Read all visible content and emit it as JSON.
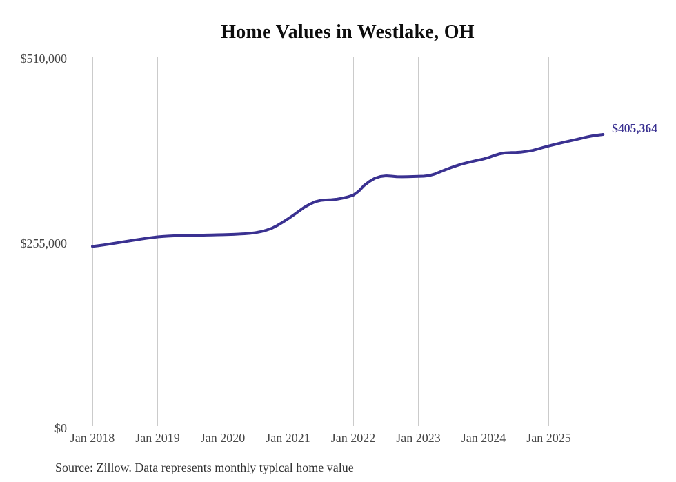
{
  "title": "Home Values in Westlake, OH",
  "source_note": "Source: Zillow. Data represents monthly typical home value",
  "colors": {
    "line": "#3a3191",
    "end_label": "#3a3191",
    "gridline": "#cbcbcb",
    "axis_text": "#474747",
    "title_text": "#0d0d0d",
    "source_text": "#333333",
    "background": "#ffffff"
  },
  "chart_data": {
    "type": "line",
    "title": "Home Values in Westlake, OH",
    "xlabel": "",
    "ylabel": "",
    "grid": "vertical-only",
    "legend": "none",
    "ylim": [
      0,
      510000
    ],
    "y_ticks": [
      {
        "label": "$510,000",
        "value": 510000
      },
      {
        "label": "$255,000",
        "value": 255000
      },
      {
        "label": "$0",
        "value": 0
      }
    ],
    "x_tick_labels": [
      "Jan 2018",
      "Jan 2019",
      "Jan 2020",
      "Jan 2021",
      "Jan 2022",
      "Jan 2023",
      "Jan 2024",
      "Jan 2025"
    ],
    "series": [
      {
        "name": "Monthly typical home value",
        "frequency": "monthly",
        "start": "Jan 2018",
        "end": "Nov 2025",
        "final_value": 405364,
        "final_label": "$405,364",
        "values": [
          250900,
          251800,
          252800,
          253900,
          255100,
          256300,
          257500,
          258700,
          259900,
          261000,
          262100,
          263100,
          264000,
          264600,
          265100,
          265500,
          265800,
          265900,
          266000,
          266100,
          266300,
          266500,
          266700,
          266900,
          267000,
          267200,
          267500,
          267900,
          268300,
          268900,
          269800,
          271200,
          273200,
          275800,
          279600,
          284100,
          288900,
          294000,
          299500,
          304800,
          309000,
          312500,
          314300,
          315000,
          315300,
          316000,
          317400,
          319200,
          321500,
          327000,
          334800,
          340500,
          344900,
          347300,
          348200,
          347800,
          347100,
          346900,
          347100,
          347300,
          347500,
          347800,
          348600,
          350700,
          353700,
          356700,
          359500,
          362100,
          364500,
          366400,
          368200,
          369900,
          371500,
          373700,
          376400,
          378600,
          379900,
          380300,
          380500,
          381000,
          382000,
          383300,
          385300,
          387400,
          389500,
          391300,
          393100,
          394900,
          396600,
          398300,
          400000,
          401800,
          403300,
          404400,
          405364
        ]
      }
    ]
  }
}
